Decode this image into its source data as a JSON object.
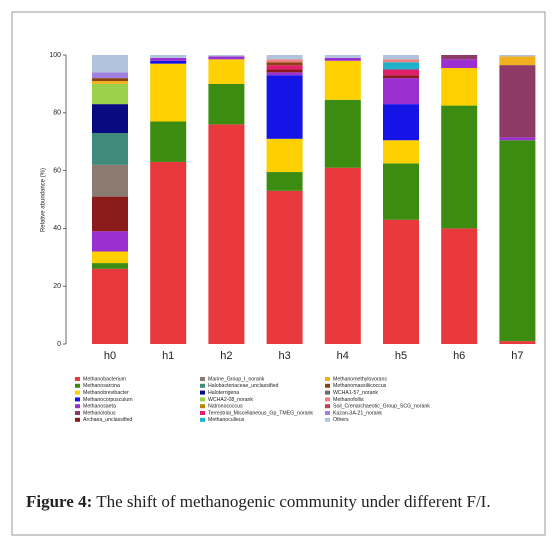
{
  "chart_data": {
    "type": "stacked_bar",
    "ylabel": "Relative abundance (%)",
    "categories": [
      "h0",
      "h1",
      "h2",
      "h3",
      "h4",
      "h5",
      "h6",
      "h7"
    ],
    "ylim": [
      0,
      100
    ],
    "yticks": [
      0,
      20,
      40,
      60,
      80,
      100
    ],
    "series": [
      {
        "name": "Methanobacterium",
        "color": "#e8393c",
        "values": [
          26,
          63,
          76,
          53,
          61,
          43,
          40,
          1
        ]
      },
      {
        "name": "Methanosarcina",
        "color": "#3c8c12",
        "values": [
          2,
          14,
          14,
          6.5,
          23.5,
          19.5,
          42.5,
          69.5
        ]
      },
      {
        "name": "Methanobrevibacter",
        "color": "#ffd000",
        "values": [
          4,
          20,
          8.5,
          11.5,
          13.5,
          8,
          13,
          0
        ]
      },
      {
        "name": "Methanocorpusculum",
        "color": "#1414e6",
        "values": [
          0,
          1,
          0,
          22,
          0,
          12.5,
          0,
          0
        ]
      },
      {
        "name": "Methanosaeta",
        "color": "#9b30d0",
        "values": [
          7,
          1,
          1,
          1,
          1,
          9,
          3,
          1
        ]
      },
      {
        "name": "Methanolobus",
        "color": "#8e3a66",
        "values": [
          0,
          0,
          0,
          0,
          0,
          0,
          1.5,
          25
        ]
      },
      {
        "name": "Archaea_unclassified",
        "color": "#8b1a1a",
        "values": [
          12,
          0,
          0,
          1,
          0,
          1,
          0,
          0
        ]
      },
      {
        "name": "Marine_Group_I_norank",
        "color": "#8a7a70",
        "values": [
          11,
          0,
          0,
          0,
          0,
          0,
          0,
          0
        ]
      },
      {
        "name": "Halobacteriaceae_unclassified",
        "color": "#3f8a7a",
        "values": [
          11,
          0,
          0,
          0,
          0,
          0,
          0,
          0
        ]
      },
      {
        "name": "Haloterrigena",
        "color": "#0a0a80",
        "values": [
          10,
          0,
          0,
          0,
          0,
          0,
          0,
          0
        ]
      },
      {
        "name": "WCHA2-08_norank",
        "color": "#9bd04a",
        "values": [
          7,
          0,
          0,
          0,
          0,
          0,
          0,
          0
        ]
      },
      {
        "name": "Natronococcus",
        "color": "#b8860b",
        "values": [
          0,
          0,
          0,
          0,
          0,
          0,
          0,
          0
        ]
      },
      {
        "name": "Terrestrial_Miscellaneous_Gp_TMEG_norank",
        "color": "#e0206a",
        "values": [
          0,
          0,
          0,
          1.5,
          0,
          2,
          0,
          0
        ]
      },
      {
        "name": "Methanoculleus",
        "color": "#20b0c8",
        "values": [
          0,
          0,
          0,
          0,
          0,
          2.5,
          0,
          0
        ]
      },
      {
        "name": "Methanomethylovorans",
        "color": "#f0b020",
        "values": [
          1,
          0,
          0,
          0,
          0,
          0,
          0,
          3
        ]
      },
      {
        "name": "Methanomassiliicoccus",
        "color": "#8b4513",
        "values": [
          1,
          0,
          0,
          1,
          0,
          0,
          0,
          0
        ]
      },
      {
        "name": "WCHA1-57_norank",
        "color": "#6b6b6b",
        "values": [
          0,
          0,
          0,
          0,
          0,
          0,
          0,
          0
        ]
      },
      {
        "name": "Methanofollis",
        "color": "#f08080",
        "values": [
          0,
          0,
          0,
          1,
          0,
          1,
          0,
          0
        ]
      },
      {
        "name": "Soil_Crenarchaeotic_Group_SCG_norank",
        "color": "#c04050",
        "values": [
          0,
          0,
          0,
          0,
          0,
          0,
          0,
          0
        ]
      },
      {
        "name": "Kazan-3A-21_norank",
        "color": "#a080e0",
        "values": [
          2,
          0,
          0,
          0,
          0,
          0,
          0,
          0
        ]
      },
      {
        "name": "Others",
        "color": "#b0c4de",
        "values": [
          6,
          1,
          0.5,
          1.5,
          1,
          1.5,
          0,
          0.5
        ]
      }
    ]
  },
  "figure": {
    "label": "Figure 4:",
    "caption": "The shift of methanogenic community under different F/I."
  }
}
